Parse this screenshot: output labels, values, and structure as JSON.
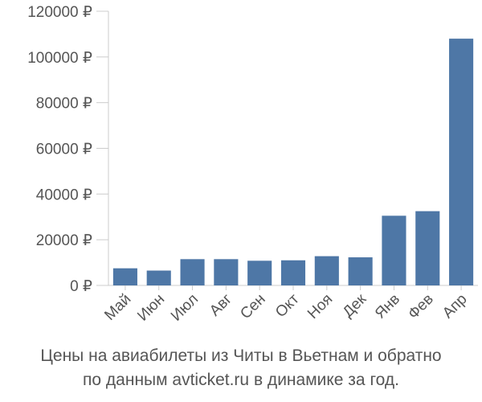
{
  "chart_data": {
    "type": "bar",
    "categories": [
      "Май",
      "Июн",
      "Июл",
      "Авг",
      "Сен",
      "Окт",
      "Ноя",
      "Дек",
      "Янв",
      "Фев",
      "Апр"
    ],
    "values": [
      7500,
      6500,
      11500,
      11500,
      10800,
      11000,
      12800,
      12300,
      30500,
      32500,
      108000
    ],
    "ylim": [
      0,
      120000
    ],
    "yticks": [
      0,
      20000,
      40000,
      60000,
      80000,
      100000,
      120000
    ],
    "ytick_labels": [
      "0 ₽",
      "20000 ₽",
      "40000 ₽",
      "60000 ₽",
      "80000 ₽",
      "100000 ₽",
      "120000 ₽"
    ],
    "bar_color": "#4e77a6",
    "grid": false
  },
  "caption": {
    "line1": "Цены на авиабилеты из Читы в Вьетнам и обратно",
    "line2": "по данным avticket.ru в динамике за год."
  }
}
